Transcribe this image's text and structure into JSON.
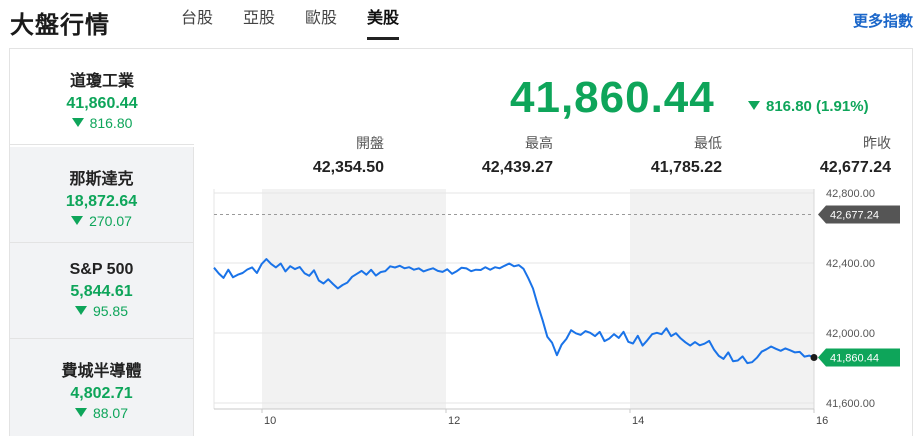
{
  "header": {
    "title": "大盤行情",
    "tabs": [
      {
        "label": "台股"
      },
      {
        "label": "亞股"
      },
      {
        "label": "歐股"
      },
      {
        "label": "美股"
      }
    ],
    "active_tab": "美股",
    "more_link": "更多指數"
  },
  "indices": [
    {
      "name": "道瓊工業",
      "value": "41,860.44",
      "change": "816.80"
    },
    {
      "name": "那斯達克",
      "value": "18,872.64",
      "change": "270.07"
    },
    {
      "name": "S&P 500",
      "value": "5,844.61",
      "change": "95.85"
    },
    {
      "name": "費城半導體",
      "value": "4,802.71",
      "change": "88.07"
    }
  ],
  "quote": {
    "price": "41,860.44",
    "change": "816.80 (1.91%)",
    "stats": [
      {
        "label": "開盤",
        "value": "42,354.50"
      },
      {
        "label": "最高",
        "value": "42,439.27"
      },
      {
        "label": "最低",
        "value": "41,785.22"
      },
      {
        "label": "昨收",
        "value": "42,677.24"
      }
    ]
  },
  "colors": {
    "down": "#0ea55a",
    "line": "#1a73e8",
    "accent": "#1a66c9"
  },
  "chart_data": {
    "type": "line",
    "x_ticks": [
      "10",
      "12",
      "14",
      "16"
    ],
    "y_ticks": [
      "42,800.00",
      "42,400.00",
      "42,000.00",
      "41,600.00"
    ],
    "ylim": [
      41600,
      42800
    ],
    "reference": {
      "label": "42,677.24",
      "value": 42677.24
    },
    "last": {
      "label": "41,860.44",
      "value": 41860.44
    },
    "values": [
      42373,
      42340,
      42315,
      42362,
      42318,
      42333,
      42343,
      42363,
      42375,
      42343,
      42394,
      42422,
      42395,
      42375,
      42397,
      42352,
      42382,
      42365,
      42377,
      42342,
      42327,
      42358,
      42300,
      42283,
      42307,
      42280,
      42255,
      42274,
      42288,
      42321,
      42338,
      42355,
      42333,
      42361,
      42328,
      42348,
      42354,
      42381,
      42374,
      42384,
      42370,
      42376,
      42362,
      42369,
      42352,
      42362,
      42370,
      42355,
      42349,
      42364,
      42338,
      42354,
      42373,
      42369,
      42353,
      42362,
      42360,
      42376,
      42362,
      42376,
      42370,
      42384,
      42397,
      42381,
      42388,
      42367,
      42313,
      42254,
      42159,
      42073,
      41979,
      41944,
      41873,
      41933,
      41966,
      42016,
      41998,
      41989,
      42011,
      42001,
      41982,
      42006,
      41954,
      41968,
      41993,
      41972,
      42007,
      41950,
      41940,
      41984,
      41928,
      41958,
      41993,
      42001,
      41993,
      42027,
      41982,
      41999,
      41969,
      41947,
      41928,
      41948,
      41930,
      41939,
      41955,
      41905,
      41869,
      41852,
      41889,
      41839,
      41843,
      41866,
      41828,
      41833,
      41859,
      41893,
      41907,
      41923,
      41910,
      41898,
      41912,
      41901,
      41889,
      41892,
      41865,
      41871,
      41860
    ]
  }
}
